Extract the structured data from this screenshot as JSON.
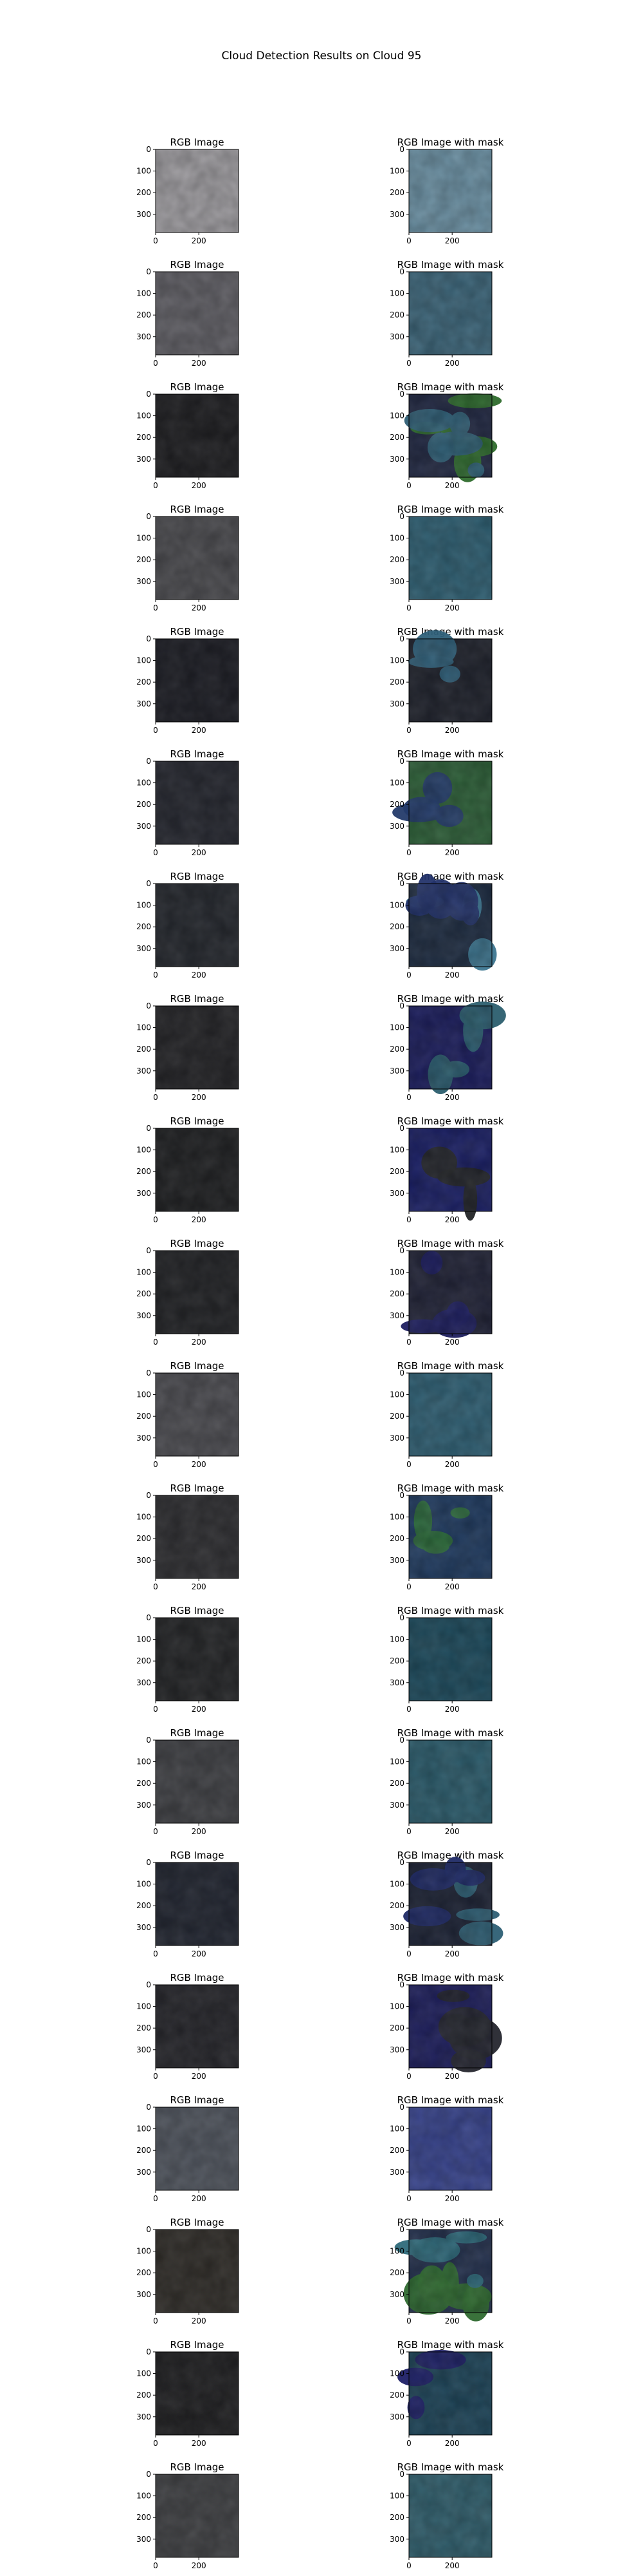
{
  "figure": {
    "title": "Cloud Detection Results on Cloud 95"
  },
  "chart_data": {
    "type": "image-grid",
    "rows": 20,
    "columns": 2,
    "column_titles": [
      "RGB Image",
      "RGB Image with mask"
    ],
    "x_ticks": [
      0,
      200
    ],
    "y_ticks": [
      0,
      100,
      200,
      300
    ],
    "x_tick_labels": [
      "0",
      "200"
    ],
    "y_tick_labels": [
      "0",
      "100",
      "200",
      "300"
    ],
    "image_extent": [
      384,
      384
    ],
    "panels": [
      {
        "row": 1,
        "rgb_color": "#9d9b9f",
        "mask_color": "#6a8fa2",
        "mask_regions": []
      },
      {
        "row": 2,
        "rgb_color": "#5e5d63",
        "mask_color": "#3b6478",
        "mask_regions": []
      },
      {
        "row": 3,
        "rgb_color": "#1d1d20",
        "mask_color": "#1f2640",
        "mask_regions": [
          {
            "class": "green",
            "color": "#2e6b2c"
          },
          {
            "class": "teal",
            "color": "#2f5f76"
          }
        ]
      },
      {
        "row": 4,
        "rgb_color": "#4a4a4e",
        "mask_color": "#2e5e71",
        "mask_regions": []
      },
      {
        "row": 5,
        "rgb_color": "#1b1c23",
        "mask_color": "#1e212b",
        "mask_regions": [
          {
            "class": "teal",
            "color": "#2e5f78"
          }
        ]
      },
      {
        "row": 6,
        "rgb_color": "#24262e",
        "mask_color": "#2c5e37",
        "mask_regions": [
          {
            "class": "blue",
            "color": "#243b6a"
          }
        ]
      },
      {
        "row": 7,
        "rgb_color": "#23262c",
        "mask_color": "#1d2b40",
        "mask_regions": [
          {
            "class": "teal",
            "color": "#3c7690"
          },
          {
            "class": "blue",
            "color": "#23336a"
          }
        ]
      },
      {
        "row": 8,
        "rgb_color": "#232326",
        "mask_color": "#1b1d5c",
        "mask_regions": [
          {
            "class": "teal",
            "color": "#2b5e6e"
          }
        ]
      },
      {
        "row": 9,
        "rgb_color": "#1e1f21",
        "mask_color": "#1a1f64",
        "mask_regions": [
          {
            "class": "dark",
            "color": "#222426"
          }
        ]
      },
      {
        "row": 10,
        "rgb_color": "#202124",
        "mask_color": "#202236",
        "mask_regions": [
          {
            "class": "blue",
            "color": "#1d1f60"
          }
        ]
      },
      {
        "row": 11,
        "rgb_color": "#4b4b50",
        "mask_color": "#2f5f73",
        "mask_regions": []
      },
      {
        "row": 12,
        "rgb_color": "#2d2d30",
        "mask_color": "#1f3a5f",
        "mask_regions": [
          {
            "class": "green",
            "color": "#2c6a3a"
          }
        ]
      },
      {
        "row": 13,
        "rgb_color": "#232426",
        "mask_color": "#1d4a5c",
        "mask_regions": []
      },
      {
        "row": 14,
        "rgb_color": "#3f4044",
        "mask_color": "#2b5b6b",
        "mask_regions": []
      },
      {
        "row": 15,
        "rgb_color": "#212530",
        "mask_color": "#1c2234",
        "mask_regions": [
          {
            "class": "teal",
            "color": "#2d5f74"
          },
          {
            "class": "blue",
            "color": "#1f2a66"
          }
        ]
      },
      {
        "row": 16,
        "rgb_color": "#25252a",
        "mask_color": "#1d1e5c",
        "mask_regions": [
          {
            "class": "dark",
            "color": "#25262e"
          }
        ]
      },
      {
        "row": 17,
        "rgb_color": "#4f545d",
        "mask_color": "#37438c",
        "mask_regions": []
      },
      {
        "row": 18,
        "rgb_color": "#2f2c28",
        "mask_color": "#23304d",
        "mask_regions": [
          {
            "class": "green",
            "color": "#2f6a30"
          },
          {
            "class": "teal",
            "color": "#2e6a7a"
          }
        ]
      },
      {
        "row": 19,
        "rgb_color": "#1f1f21",
        "mask_color": "#1d4458",
        "mask_regions": [
          {
            "class": "blue",
            "color": "#1e1f66"
          }
        ]
      },
      {
        "row": 20,
        "rgb_color": "#3f4043",
        "mask_color": "#2f5d6b",
        "mask_regions": []
      }
    ]
  }
}
